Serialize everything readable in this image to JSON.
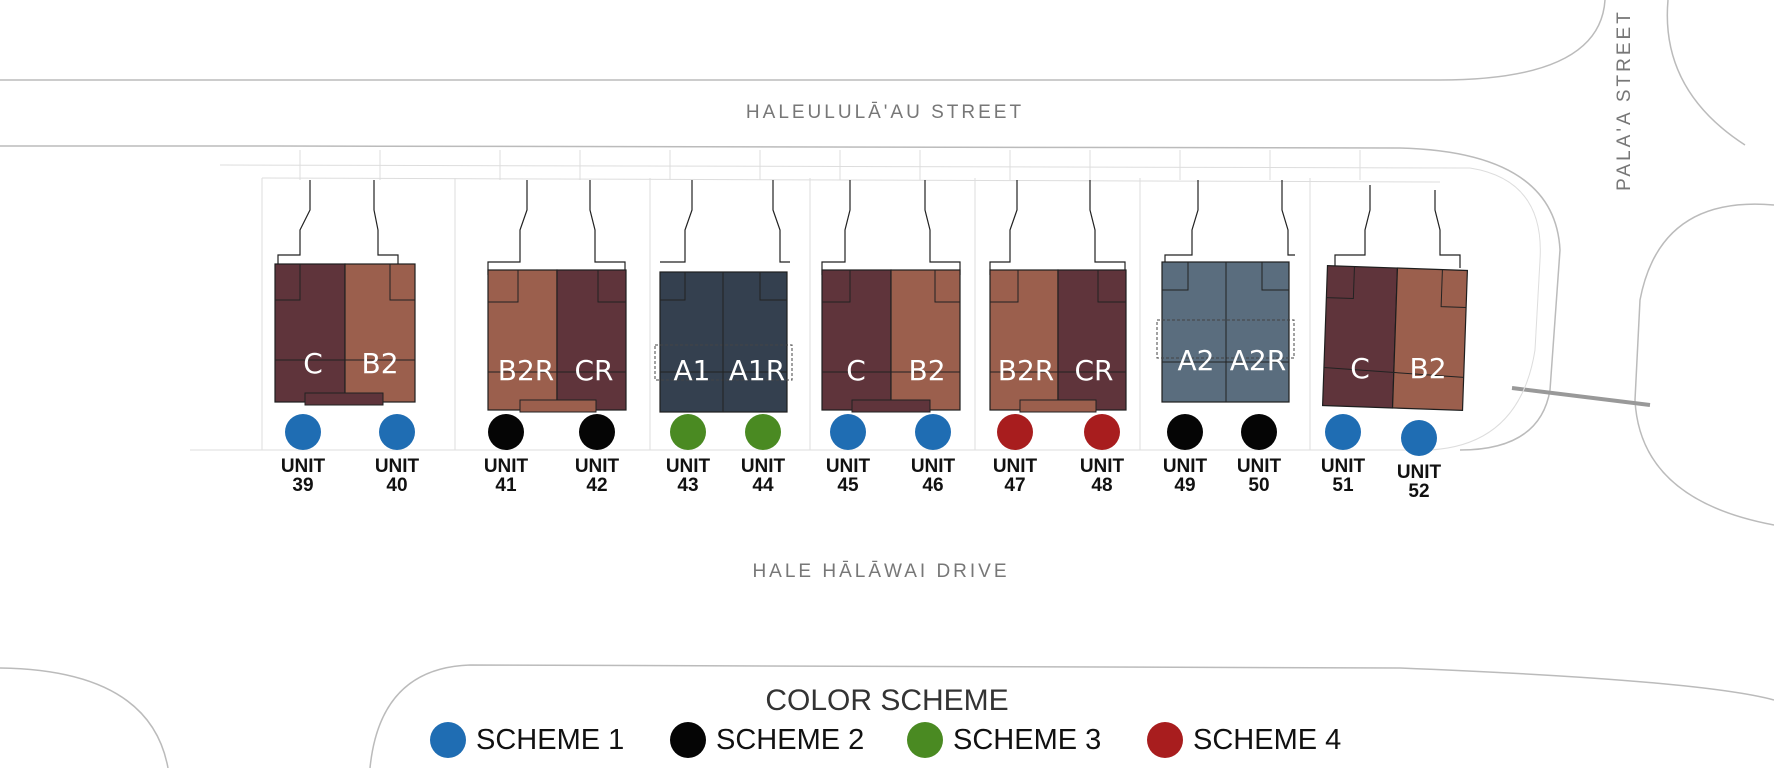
{
  "streets": {
    "north": "HALEULULĀ'AU STREET",
    "south": "HALE HĀLĀWAI DRIVE",
    "east": "PALA'A STREET"
  },
  "colors": {
    "scheme_1": "#1f6db3",
    "scheme_2": "#050505",
    "scheme_3": "#4a8a22",
    "scheme_4": "#a81d1e",
    "dark_brown": "#5f343b",
    "light_brown": "#9b5f4d",
    "navy": "#34404f",
    "slate": "#5a6d7e"
  },
  "buildings": [
    {
      "left_plan": "C",
      "right_plan": "B2"
    },
    {
      "left_plan": "B2R",
      "right_plan": "CR"
    },
    {
      "left_plan": "A1",
      "right_plan": "A1R"
    },
    {
      "left_plan": "C",
      "right_plan": "B2"
    },
    {
      "left_plan": "B2R",
      "right_plan": "CR"
    },
    {
      "left_plan": "A2",
      "right_plan": "A2R"
    },
    {
      "left_plan": "C",
      "right_plan": "B2"
    }
  ],
  "units": [
    {
      "word": "UNIT",
      "number": "39",
      "scheme": 1
    },
    {
      "word": "UNIT",
      "number": "40",
      "scheme": 1
    },
    {
      "word": "UNIT",
      "number": "41",
      "scheme": 2
    },
    {
      "word": "UNIT",
      "number": "42",
      "scheme": 2
    },
    {
      "word": "UNIT",
      "number": "43",
      "scheme": 3
    },
    {
      "word": "UNIT",
      "number": "44",
      "scheme": 3
    },
    {
      "word": "UNIT",
      "number": "45",
      "scheme": 1
    },
    {
      "word": "UNIT",
      "number": "46",
      "scheme": 1
    },
    {
      "word": "UNIT",
      "number": "47",
      "scheme": 4
    },
    {
      "word": "UNIT",
      "number": "48",
      "scheme": 4
    },
    {
      "word": "UNIT",
      "number": "49",
      "scheme": 2
    },
    {
      "word": "UNIT",
      "number": "50",
      "scheme": 2
    },
    {
      "word": "UNIT",
      "number": "51",
      "scheme": 1
    },
    {
      "word": "UNIT",
      "number": "52",
      "scheme": 1
    }
  ],
  "legend": {
    "title": "COLOR SCHEME",
    "items": [
      {
        "label": "SCHEME 1",
        "color": "#1f6db3"
      },
      {
        "label": "SCHEME 2",
        "color": "#050505"
      },
      {
        "label": "SCHEME 3",
        "color": "#4a8a22"
      },
      {
        "label": "SCHEME 4",
        "color": "#a81d1e"
      }
    ]
  }
}
